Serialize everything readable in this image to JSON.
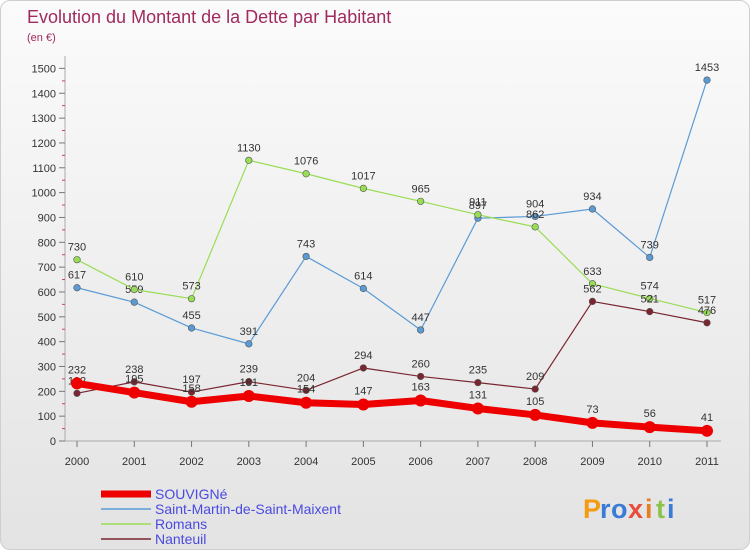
{
  "chart_data": {
    "type": "line",
    "title": "Evolution du Montant de la Dette par Habitant",
    "subtitle": "(en €)",
    "x": [
      "2000",
      "2001",
      "2002",
      "2003",
      "2004",
      "2005",
      "2006",
      "2007",
      "2008",
      "2009",
      "2010",
      "2011"
    ],
    "yticks": [
      0,
      100,
      200,
      300,
      400,
      500,
      600,
      700,
      800,
      900,
      1000,
      1100,
      1200,
      1300,
      1400,
      1500
    ],
    "ylim": [
      0,
      1550
    ],
    "grid": false,
    "legend_position": "bottom-left",
    "series": [
      {
        "name": "SOUVIGNé",
        "color": "#ee0000",
        "values": [
          232,
          195,
          158,
          181,
          154,
          147,
          163,
          131,
          105,
          73,
          56,
          41
        ]
      },
      {
        "name": "Saint-Martin-de-Saint-Maixent",
        "color": "#5b9bd5",
        "values": [
          617,
          559,
          455,
          391,
          743,
          614,
          447,
          897,
          904,
          934,
          739,
          1453
        ]
      },
      {
        "name": "Romans",
        "color": "#99dd55",
        "values": [
          730,
          610,
          573,
          1130,
          1076,
          1017,
          965,
          911,
          862,
          633,
          574,
          517
        ]
      },
      {
        "name": "Nanteuil",
        "color": "#7a2530",
        "values": [
          192,
          238,
          197,
          239,
          204,
          294,
          260,
          235,
          209,
          562,
          521,
          476
        ]
      }
    ]
  },
  "logo": {
    "letters": [
      "P",
      "r",
      "o",
      "x",
      "i",
      "t",
      "i"
    ],
    "colors": [
      "#f39c12",
      "#3a7bd5",
      "#3a7bd5",
      "#e74c3c",
      "#e67e22",
      "#8bc34a",
      "#3a7bd5"
    ]
  }
}
